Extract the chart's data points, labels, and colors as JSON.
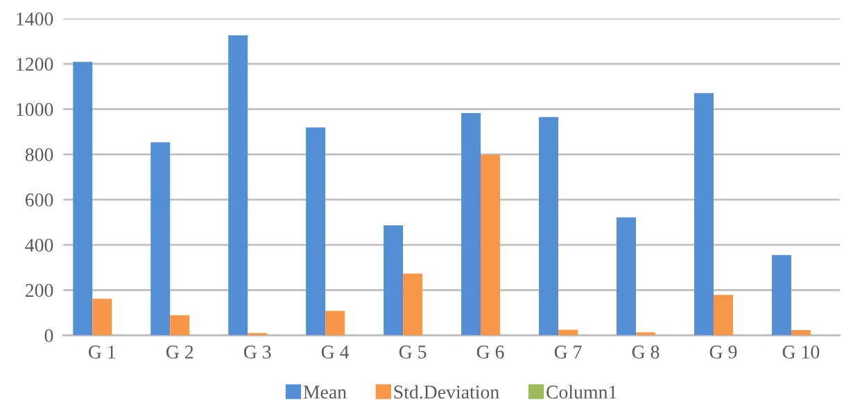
{
  "chart_data": {
    "type": "bar",
    "categories": [
      "G 1",
      "G 2",
      "G 3",
      "G 4",
      "G 5",
      "G 6",
      "G 7",
      "G 8",
      "G 9",
      "G 10"
    ],
    "series": [
      {
        "name": "Mean",
        "color": "#558ed5",
        "values": [
          1209,
          853,
          1326,
          919,
          486,
          983,
          965,
          521,
          1071,
          355
        ]
      },
      {
        "name": "Std.Deviation",
        "color": "#f79646",
        "values": [
          162,
          89,
          10,
          108,
          273,
          798,
          25,
          13,
          179,
          23
        ]
      },
      {
        "name": "Column1",
        "color": "#9bbb59",
        "values": [
          null,
          null,
          null,
          null,
          null,
          null,
          null,
          null,
          null,
          null
        ]
      }
    ],
    "ylim": [
      0,
      1400
    ],
    "yticks": [
      0,
      200,
      400,
      600,
      800,
      1000,
      1200,
      1400
    ],
    "grid": "y",
    "legend": "bottom"
  }
}
